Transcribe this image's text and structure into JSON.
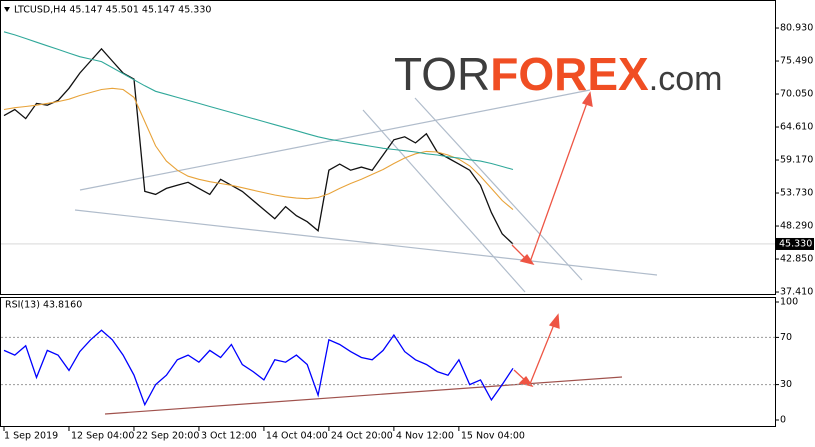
{
  "chart_data": [
    {
      "type": "line",
      "title": "LTCUSD,H4  45.147 45.501 45.147 45.330",
      "watermark": [
        "TOR",
        "FOREX",
        ".com"
      ],
      "last_price_label": "45.330",
      "last_price": 45.33,
      "categories": [
        "1 Sep 2019",
        null,
        null,
        null,
        null,
        null,
        "12 Sep 04:00",
        null,
        null,
        null,
        null,
        null,
        "22 Sep 20:00",
        null,
        null,
        null,
        null,
        null,
        "3 Oct 12:00",
        null,
        null,
        null,
        null,
        null,
        "14 Oct 04:00",
        null,
        null,
        null,
        null,
        null,
        "24 Oct 20:00",
        null,
        null,
        null,
        null,
        null,
        "4 Nov 12:00",
        null,
        null,
        null,
        null,
        null,
        "15 Nov 04:00",
        null,
        null,
        null,
        null,
        null
      ],
      "series": [
        {
          "name": "price",
          "color": "#111111",
          "values": [
            66.5,
            67.5,
            66.0,
            68.5,
            68.2,
            69.0,
            71.0,
            73.5,
            75.5,
            77.5,
            75.5,
            73.5,
            72.5,
            54.0,
            53.5,
            54.5,
            55.0,
            55.5,
            54.5,
            53.5,
            56.0,
            55.0,
            54.0,
            52.5,
            51.0,
            49.5,
            51.5,
            50.0,
            49.0,
            47.5,
            57.5,
            58.5,
            57.5,
            58.0,
            57.5,
            60.0,
            62.5,
            63.0,
            62.0,
            63.5,
            60.5,
            59.5,
            58.5,
            57.5,
            55.0,
            50.5,
            47.0,
            45.33
          ]
        },
        {
          "name": "ma-fast",
          "color": "#e8a33a",
          "values": [
            67.5,
            67.8,
            68.0,
            68.2,
            68.5,
            68.8,
            69.2,
            69.8,
            70.3,
            70.8,
            71.0,
            70.8,
            69.5,
            65.5,
            61.5,
            59.0,
            57.5,
            56.5,
            56.0,
            55.6,
            55.3,
            55.0,
            54.6,
            54.2,
            53.8,
            53.4,
            53.1,
            52.9,
            52.8,
            53.0,
            53.6,
            54.5,
            55.3,
            56.0,
            56.8,
            57.6,
            58.6,
            59.5,
            60.2,
            60.6,
            60.5,
            60.0,
            59.3,
            58.2,
            56.5,
            54.5,
            52.5,
            51.0
          ]
        },
        {
          "name": "ma-slow",
          "color": "#30a89a",
          "values": [
            80.3,
            79.8,
            79.2,
            78.6,
            78.0,
            77.4,
            76.8,
            76.2,
            75.8,
            75.4,
            74.4,
            73.4,
            72.4,
            71.4,
            70.5,
            70.0,
            69.5,
            69.0,
            68.5,
            68.0,
            67.5,
            67.0,
            66.5,
            66.0,
            65.5,
            65.0,
            64.5,
            64.0,
            63.5,
            63.0,
            62.6,
            62.3,
            62.0,
            61.7,
            61.4,
            61.1,
            60.9,
            60.7,
            60.5,
            60.2,
            60.0,
            59.7,
            59.5,
            59.2,
            59.0,
            58.6,
            58.1,
            57.6
          ]
        }
      ],
      "ylim": [
        36.92,
        84.89
      ],
      "yticks": [
        {
          "value": 80.93,
          "label": "80.930"
        },
        {
          "value": 75.49,
          "label": "75.490"
        },
        {
          "value": 70.05,
          "label": "70.050"
        },
        {
          "value": 64.61,
          "label": "64.610"
        },
        {
          "value": 59.17,
          "label": "59.170"
        },
        {
          "value": 53.73,
          "label": "53.730"
        },
        {
          "value": 48.29,
          "label": "48.290"
        },
        {
          "value": 42.85,
          "label": "42.850"
        },
        {
          "value": 37.41,
          "label": "37.410"
        }
      ]
    },
    {
      "type": "line",
      "title": "RSI(13) 43.8160",
      "series": [
        {
          "name": "RSI(13)",
          "color": "#0000ff",
          "values": [
            59,
            55,
            63,
            36,
            59,
            55,
            42,
            58,
            68,
            76,
            68,
            55,
            38,
            13,
            30,
            38,
            51,
            55,
            49,
            59,
            53,
            64,
            47,
            41,
            34,
            51,
            49,
            55,
            47,
            21,
            68,
            64,
            58,
            53,
            51,
            59,
            72,
            58,
            51,
            47,
            41,
            38,
            51,
            30,
            34,
            17,
            30,
            43.816
          ]
        }
      ],
      "ylim": [
        0,
        100
      ],
      "yticks": [
        100,
        70,
        30,
        0
      ],
      "levels": [
        70,
        30
      ]
    }
  ]
}
